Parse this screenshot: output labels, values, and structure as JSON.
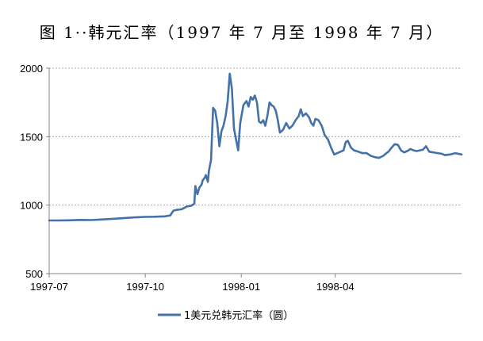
{
  "chart_data": {
    "type": "line",
    "title": "图 1··韩元汇率（1997 年 7 月至 1998 年 7 月）",
    "xlabel": "",
    "ylabel": "",
    "ylim": [
      500,
      2000
    ],
    "yticks": [
      500,
      1000,
      1500,
      2000
    ],
    "xlim": [
      "1997-07-01",
      "1998-07-31"
    ],
    "xticks": [
      {
        "date": "1997-07-01",
        "label": "1997-07"
      },
      {
        "date": "1997-10-01",
        "label": "1997-10"
      },
      {
        "date": "1998-01-01",
        "label": "1998-01"
      },
      {
        "date": "1998-04-01",
        "label": "1998-04"
      }
    ],
    "grid": "horizontal dashed",
    "legend_position": "bottom",
    "series": [
      {
        "name": "1美元兑韩元汇率（圆）",
        "color": "#4472a8",
        "points": [
          [
            "1997-07-01",
            888
          ],
          [
            "1997-07-10",
            888
          ],
          [
            "1997-07-20",
            889
          ],
          [
            "1997-07-31",
            892
          ],
          [
            "1997-08-10",
            891
          ],
          [
            "1997-08-20",
            895
          ],
          [
            "1997-08-31",
            900
          ],
          [
            "1997-09-10",
            905
          ],
          [
            "1997-09-20",
            910
          ],
          [
            "1997-09-30",
            914
          ],
          [
            "1997-10-10",
            915
          ],
          [
            "1997-10-20",
            918
          ],
          [
            "1997-10-25",
            925
          ],
          [
            "1997-10-28",
            960
          ],
          [
            "1997-10-31",
            965
          ],
          [
            "1997-11-05",
            970
          ],
          [
            "1997-11-10",
            990
          ],
          [
            "1997-11-14",
            995
          ],
          [
            "1997-11-17",
            1010
          ],
          [
            "1997-11-18",
            1140
          ],
          [
            "1997-11-20",
            1080
          ],
          [
            "1997-11-22",
            1130
          ],
          [
            "1997-11-24",
            1150
          ],
          [
            "1997-11-25",
            1180
          ],
          [
            "1997-11-27",
            1200
          ],
          [
            "1997-11-28",
            1220
          ],
          [
            "1997-11-30",
            1170
          ],
          [
            "1997-12-01",
            1250
          ],
          [
            "1997-12-03",
            1330
          ],
          [
            "1997-12-05",
            1710
          ],
          [
            "1997-12-07",
            1690
          ],
          [
            "1997-12-09",
            1600
          ],
          [
            "1997-12-11",
            1430
          ],
          [
            "1997-12-13",
            1540
          ],
          [
            "1997-12-15",
            1580
          ],
          [
            "1997-12-17",
            1650
          ],
          [
            "1997-12-19",
            1760
          ],
          [
            "1997-12-21",
            1960
          ],
          [
            "1997-12-23",
            1850
          ],
          [
            "1997-12-25",
            1560
          ],
          [
            "1997-12-27",
            1480
          ],
          [
            "1997-12-29",
            1400
          ],
          [
            "1997-12-31",
            1600
          ],
          [
            "1998-01-03",
            1730
          ],
          [
            "1998-01-06",
            1760
          ],
          [
            "1998-01-08",
            1720
          ],
          [
            "1998-01-10",
            1790
          ],
          [
            "1998-01-12",
            1770
          ],
          [
            "1998-01-14",
            1800
          ],
          [
            "1998-01-16",
            1750
          ],
          [
            "1998-01-18",
            1610
          ],
          [
            "1998-01-20",
            1600
          ],
          [
            "1998-01-22",
            1620
          ],
          [
            "1998-01-24",
            1580
          ],
          [
            "1998-01-26",
            1650
          ],
          [
            "1998-01-28",
            1750
          ],
          [
            "1998-01-30",
            1730
          ],
          [
            "1998-02-01",
            1720
          ],
          [
            "1998-02-03",
            1690
          ],
          [
            "1998-02-05",
            1620
          ],
          [
            "1998-02-07",
            1530
          ],
          [
            "1998-02-10",
            1550
          ],
          [
            "1998-02-13",
            1600
          ],
          [
            "1998-02-16",
            1560
          ],
          [
            "1998-02-19",
            1580
          ],
          [
            "1998-02-22",
            1620
          ],
          [
            "1998-02-25",
            1650
          ],
          [
            "1998-02-27",
            1700
          ],
          [
            "1998-03-01",
            1650
          ],
          [
            "1998-03-04",
            1670
          ],
          [
            "1998-03-07",
            1640
          ],
          [
            "1998-03-09",
            1600
          ],
          [
            "1998-03-11",
            1580
          ],
          [
            "1998-03-13",
            1630
          ],
          [
            "1998-03-16",
            1620
          ],
          [
            "1998-03-19",
            1580
          ],
          [
            "1998-03-22",
            1510
          ],
          [
            "1998-03-25",
            1480
          ],
          [
            "1998-03-28",
            1420
          ],
          [
            "1998-03-31",
            1370
          ],
          [
            "1998-04-03",
            1380
          ],
          [
            "1998-04-06",
            1390
          ],
          [
            "1998-04-09",
            1400
          ],
          [
            "1998-04-11",
            1460
          ],
          [
            "1998-04-13",
            1470
          ],
          [
            "1998-04-16",
            1420
          ],
          [
            "1998-04-19",
            1400
          ],
          [
            "1998-04-23",
            1390
          ],
          [
            "1998-04-27",
            1380
          ],
          [
            "1998-05-01",
            1380
          ],
          [
            "1998-05-05",
            1360
          ],
          [
            "1998-05-09",
            1350
          ],
          [
            "1998-05-13",
            1345
          ],
          [
            "1998-05-17",
            1360
          ],
          [
            "1998-05-20",
            1380
          ],
          [
            "1998-05-22",
            1390
          ],
          [
            "1998-05-25",
            1420
          ],
          [
            "1998-05-28",
            1445
          ],
          [
            "1998-05-31",
            1440
          ],
          [
            "1998-06-03",
            1400
          ],
          [
            "1998-06-06",
            1385
          ],
          [
            "1998-06-09",
            1395
          ],
          [
            "1998-06-12",
            1410
          ],
          [
            "1998-06-15",
            1400
          ],
          [
            "1998-06-18",
            1395
          ],
          [
            "1998-06-21",
            1400
          ],
          [
            "1998-06-24",
            1405
          ],
          [
            "1998-06-27",
            1430
          ],
          [
            "1998-06-30",
            1390
          ],
          [
            "1998-07-04",
            1385
          ],
          [
            "1998-07-08",
            1380
          ],
          [
            "1998-07-12",
            1375
          ],
          [
            "1998-07-15",
            1365
          ],
          [
            "1998-07-20",
            1370
          ],
          [
            "1998-07-25",
            1380
          ],
          [
            "1998-07-31",
            1370
          ]
        ]
      }
    ]
  }
}
